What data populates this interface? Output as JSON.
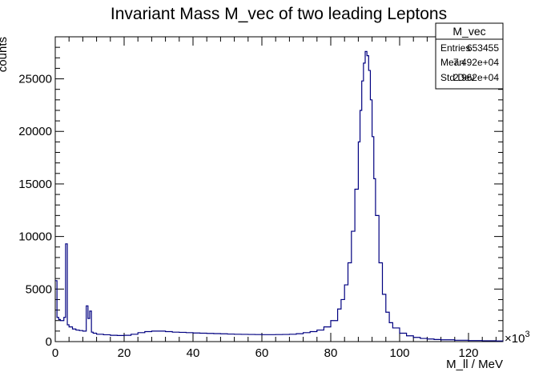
{
  "chart_data": {
    "type": "histogram-step",
    "title": "Invariant Mass M_vec of two leading Leptons",
    "xlabel": "M_ll / MeV",
    "ylabel": "counts",
    "x_multiplier_label": "×10",
    "x_multiplier_exp": "3",
    "xlim": [
      0,
      130
    ],
    "ylim": [
      0,
      29000
    ],
    "x_ticks": [
      0,
      20,
      40,
      60,
      80,
      100,
      120
    ],
    "y_ticks": [
      0,
      5000,
      10000,
      15000,
      20000,
      25000
    ],
    "line_color": "#000080",
    "stats_box": {
      "name": "M_vec",
      "rows": [
        {
          "label": "Entries",
          "value": "653455"
        },
        {
          "label": "Mean",
          "value": "7.492e+04"
        },
        {
          "label": "Std Dev",
          "value": "2.962e+04"
        }
      ]
    },
    "series": [
      {
        "x": [
          0,
          0.5,
          1.0,
          1.5,
          2.0,
          2.5,
          3.0,
          3.5,
          4.0,
          5,
          6,
          7,
          8,
          9.0,
          9.5,
          10.0,
          10.5,
          11,
          12,
          14,
          16,
          18,
          20,
          22,
          24,
          26,
          28,
          30,
          32,
          34,
          36,
          38,
          40,
          42,
          44,
          46,
          48,
          50,
          52,
          54,
          56,
          58,
          60,
          62,
          64,
          66,
          68,
          70,
          72,
          74,
          76,
          78,
          80,
          82,
          83,
          84,
          85,
          86,
          87,
          88,
          88.5,
          89,
          89.5,
          90,
          90.5,
          91,
          91.5,
          92,
          92.5,
          93,
          94,
          95,
          96,
          97,
          98,
          100,
          102,
          104,
          106,
          108,
          110,
          112,
          116,
          120,
          124,
          128,
          130
        ],
        "values": [
          5800,
          2300,
          2100,
          2000,
          2000,
          2300,
          9300,
          1600,
          1400,
          1200,
          1100,
          1050,
          1000,
          3400,
          2200,
          2900,
          900,
          800,
          700,
          650,
          600,
          580,
          600,
          700,
          850,
          950,
          1000,
          1000,
          950,
          900,
          880,
          850,
          820,
          800,
          780,
          760,
          740,
          720,
          700,
          690,
          680,
          670,
          660,
          660,
          670,
          680,
          700,
          750,
          850,
          950,
          1100,
          1400,
          2000,
          3100,
          4000,
          5400,
          7500,
          10500,
          14500,
          19000,
          22000,
          24800,
          26500,
          27600,
          27200,
          25800,
          23000,
          19500,
          15500,
          12000,
          7500,
          4500,
          2800,
          1800,
          1300,
          800,
          550,
          400,
          300,
          250,
          200,
          170,
          130,
          100,
          80,
          60,
          50
        ]
      }
    ]
  }
}
